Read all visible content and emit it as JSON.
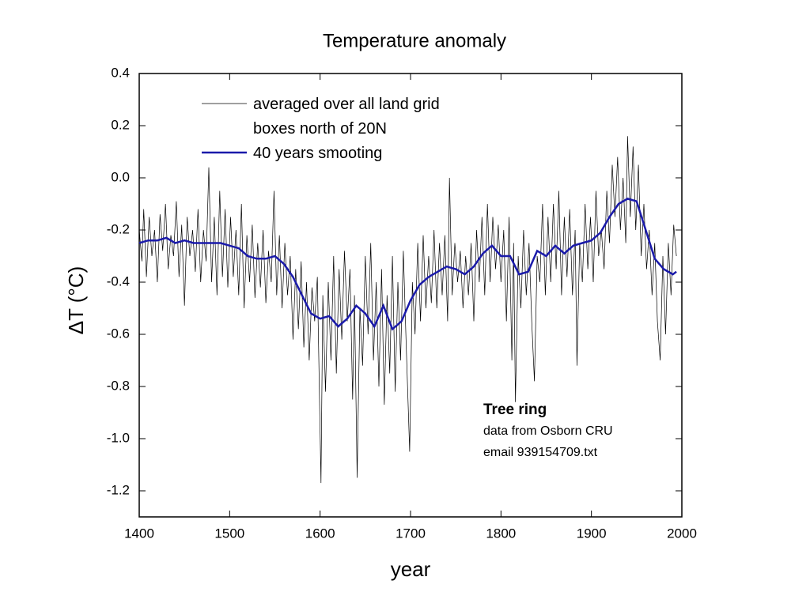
{
  "chart_data": {
    "type": "line",
    "title": "Temperature anomaly",
    "x_label": "year",
    "y_label": "ΔT (°C)",
    "xlim": [
      1400,
      2000
    ],
    "xticks": [
      1400,
      1500,
      1600,
      1700,
      1800,
      1900,
      2000
    ],
    "ylim": [
      -1.3,
      0.4
    ],
    "yticks": [
      0.4,
      0.2,
      {
        "value": 0,
        "label": "0.0"
      },
      -0.2,
      -0.4,
      -0.6,
      -0.8,
      {
        "value": -1,
        "label": "-1.0"
      },
      -1.2
    ],
    "legend": "upper left",
    "annotations": [
      "Tree ring",
      "data from Osborn CRU",
      "email 939154709.txt"
    ],
    "series": [
      {
        "name": "averaged over all land grid boxes north of 20N",
        "color": "#000000",
        "x": [
          1400,
          1403,
          1405,
          1408,
          1411,
          1414,
          1417,
          1420,
          1423,
          1426,
          1429,
          1432,
          1435,
          1438,
          1441,
          1444,
          1447,
          1450,
          1453,
          1456,
          1459,
          1462,
          1465,
          1468,
          1471,
          1474,
          1477,
          1480,
          1483,
          1486,
          1489,
          1492,
          1495,
          1498,
          1501,
          1504,
          1507,
          1510,
          1513,
          1516,
          1519,
          1522,
          1525,
          1528,
          1531,
          1534,
          1537,
          1540,
          1543,
          1546,
          1549,
          1552,
          1555,
          1558,
          1561,
          1564,
          1567,
          1570,
          1573,
          1576,
          1579,
          1582,
          1585,
          1588,
          1591,
          1594,
          1597,
          1601,
          1603,
          1606,
          1609,
          1612,
          1615,
          1618,
          1621,
          1624,
          1627,
          1630,
          1633,
          1636,
          1638,
          1641,
          1644,
          1647,
          1650,
          1653,
          1656,
          1659,
          1662,
          1665,
          1668,
          1671,
          1674,
          1677,
          1680,
          1683,
          1686,
          1689,
          1692,
          1695,
          1699,
          1702,
          1705,
          1708,
          1711,
          1714,
          1717,
          1720,
          1723,
          1726,
          1729,
          1732,
          1735,
          1738,
          1741,
          1743,
          1746,
          1749,
          1752,
          1755,
          1758,
          1761,
          1764,
          1767,
          1770,
          1773,
          1776,
          1779,
          1782,
          1785,
          1788,
          1791,
          1794,
          1797,
          1800,
          1803,
          1806,
          1809,
          1812,
          1814,
          1816,
          1819,
          1822,
          1825,
          1828,
          1831,
          1834,
          1837,
          1840,
          1843,
          1846,
          1849,
          1852,
          1855,
          1858,
          1861,
          1864,
          1867,
          1870,
          1873,
          1876,
          1879,
          1882,
          1884,
          1887,
          1890,
          1893,
          1896,
          1899,
          1902,
          1905,
          1908,
          1911,
          1914,
          1917,
          1920,
          1923,
          1926,
          1929,
          1932,
          1935,
          1938,
          1940,
          1943,
          1946,
          1949,
          1952,
          1955,
          1958,
          1961,
          1964,
          1967,
          1970,
          1973,
          1976,
          1979,
          1982,
          1985,
          1988,
          1991,
          1994
        ],
        "values": [
          -0.2,
          -0.32,
          -0.12,
          -0.38,
          -0.15,
          -0.3,
          -0.2,
          -0.4,
          -0.14,
          -0.28,
          -0.1,
          -0.35,
          -0.22,
          -0.3,
          -0.09,
          -0.38,
          -0.18,
          -0.49,
          -0.15,
          -0.3,
          -0.2,
          -0.36,
          -0.12,
          -0.4,
          -0.2,
          -0.32,
          0.04,
          -0.4,
          -0.15,
          -0.45,
          -0.05,
          -0.38,
          -0.12,
          -0.42,
          -0.15,
          -0.38,
          -0.2,
          -0.45,
          -0.1,
          -0.5,
          -0.22,
          -0.4,
          -0.18,
          -0.46,
          -0.25,
          -0.42,
          -0.2,
          -0.48,
          -0.28,
          -0.4,
          -0.05,
          -0.45,
          -0.22,
          -0.5,
          -0.25,
          -0.45,
          -0.3,
          -0.62,
          -0.35,
          -0.58,
          -0.32,
          -0.65,
          -0.4,
          -0.7,
          -0.42,
          -0.55,
          -0.38,
          -1.17,
          -0.45,
          -0.82,
          -0.4,
          -0.7,
          -0.3,
          -0.75,
          -0.35,
          -0.62,
          -0.28,
          -0.55,
          -0.35,
          -0.85,
          -0.45,
          -1.15,
          -0.5,
          -0.72,
          -0.3,
          -0.6,
          -0.25,
          -0.7,
          -0.4,
          -0.8,
          -0.35,
          -0.87,
          -0.45,
          -0.75,
          -0.3,
          -0.82,
          -0.4,
          -0.7,
          -0.28,
          -0.62,
          -1.05,
          -0.4,
          -0.6,
          -0.25,
          -0.55,
          -0.22,
          -0.5,
          -0.3,
          -0.48,
          -0.2,
          -0.5,
          -0.25,
          -0.45,
          -0.22,
          -0.55,
          0.0,
          -0.45,
          -0.25,
          -0.4,
          -0.28,
          -0.5,
          -0.3,
          -0.45,
          -0.25,
          -0.55,
          -0.2,
          -0.4,
          -0.15,
          -0.45,
          -0.1,
          -0.4,
          -0.15,
          -0.35,
          -0.18,
          -0.4,
          -0.2,
          -0.55,
          -0.15,
          -0.7,
          -0.25,
          -0.86,
          -0.3,
          -0.5,
          -0.2,
          -0.45,
          -0.25,
          -0.55,
          -0.78,
          -0.3,
          -0.4,
          -0.1,
          -0.45,
          -0.15,
          -0.4,
          -0.1,
          -0.35,
          -0.05,
          -0.45,
          -0.15,
          -0.38,
          -0.12,
          -0.45,
          -0.2,
          -0.72,
          -0.25,
          -0.4,
          -0.1,
          -0.35,
          -0.15,
          -0.4,
          -0.05,
          -0.3,
          -0.2,
          -0.35,
          -0.05,
          -0.25,
          0.05,
          -0.15,
          0.08,
          -0.2,
          0.0,
          -0.25,
          0.16,
          -0.15,
          0.12,
          -0.2,
          0.05,
          -0.3,
          -0.1,
          -0.35,
          -0.2,
          -0.45,
          -0.25,
          -0.55,
          -0.7,
          -0.3,
          -0.6,
          -0.25,
          -0.45,
          -0.18,
          -0.3
        ]
      },
      {
        "name": "40 years smooting",
        "color": "#1a1aaa",
        "x": [
          1400,
          1410,
          1420,
          1430,
          1440,
          1450,
          1460,
          1470,
          1480,
          1490,
          1500,
          1510,
          1520,
          1530,
          1540,
          1550,
          1560,
          1570,
          1580,
          1590,
          1600,
          1610,
          1620,
          1630,
          1640,
          1650,
          1660,
          1670,
          1680,
          1690,
          1700,
          1710,
          1720,
          1730,
          1740,
          1750,
          1760,
          1770,
          1780,
          1790,
          1800,
          1810,
          1820,
          1830,
          1840,
          1850,
          1860,
          1870,
          1880,
          1890,
          1900,
          1910,
          1920,
          1930,
          1940,
          1950,
          1960,
          1970,
          1980,
          1990,
          1994
        ],
        "values": [
          -0.25,
          -0.24,
          -0.24,
          -0.23,
          -0.25,
          -0.24,
          -0.25,
          -0.25,
          -0.25,
          -0.25,
          -0.26,
          -0.27,
          -0.3,
          -0.31,
          -0.31,
          -0.3,
          -0.33,
          -0.38,
          -0.45,
          -0.52,
          -0.54,
          -0.53,
          -0.57,
          -0.54,
          -0.49,
          -0.52,
          -0.57,
          -0.49,
          -0.58,
          -0.55,
          -0.47,
          -0.41,
          -0.38,
          -0.36,
          -0.34,
          -0.35,
          -0.37,
          -0.34,
          -0.29,
          -0.26,
          -0.3,
          -0.3,
          -0.37,
          -0.36,
          -0.28,
          -0.3,
          -0.26,
          -0.29,
          -0.26,
          -0.25,
          -0.24,
          -0.21,
          -0.15,
          -0.1,
          -0.08,
          -0.09,
          -0.2,
          -0.31,
          -0.35,
          -0.37,
          -0.36
        ]
      }
    ]
  }
}
